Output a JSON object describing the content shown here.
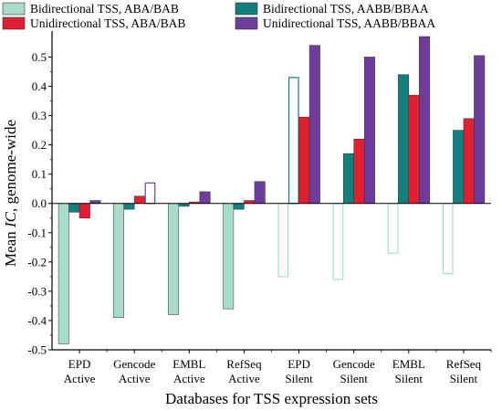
{
  "chart_data": {
    "type": "bar",
    "xlabel": "Databases for TSS expression sets",
    "ylabel_prefix": "Mean ",
    "ylabel_italic": "IC",
    "ylabel_suffix": ", genome-wide",
    "ylim": [
      -0.5,
      0.57
    ],
    "yticks": [
      -0.5,
      -0.4,
      -0.3,
      -0.2,
      -0.1,
      0.0,
      0.1,
      0.2,
      0.3,
      0.4,
      0.5
    ],
    "ytick_labels": [
      "-0.5",
      "-0.4",
      "-0.3",
      "-0.2",
      "-0.1",
      "0.0",
      "0.1",
      "0.2",
      "0.3",
      "0.4",
      "0.5"
    ],
    "categories": [
      [
        "EPD",
        "Active"
      ],
      [
        "Gencode",
        "Active"
      ],
      [
        "EMBL",
        "Active"
      ],
      [
        "RefSeq",
        "Active"
      ],
      [
        "EPD",
        "Silent"
      ],
      [
        "Gencode",
        "Silent"
      ],
      [
        "EMBL",
        "Silent"
      ],
      [
        "RefSeq",
        "Silent"
      ]
    ],
    "legend_placement": "top",
    "series": [
      {
        "name": "Bidirectional TSS, ABA/BAB",
        "color": "#a8dcc9",
        "values": [
          -0.48,
          -0.39,
          -0.38,
          -0.36,
          -0.25,
          -0.26,
          -0.17,
          -0.24
        ],
        "hollow": [
          false,
          false,
          false,
          false,
          true,
          true,
          true,
          true
        ]
      },
      {
        "name": "Bidirectional TSS, AABB/BBAA",
        "color": "#137f7f",
        "values": [
          -0.03,
          -0.02,
          -0.01,
          -0.02,
          0.43,
          0.17,
          0.44,
          0.25
        ],
        "hollow": [
          false,
          false,
          false,
          false,
          true,
          false,
          false,
          false
        ]
      },
      {
        "name": "Unidirectional TSS, ABA/BAB",
        "color": "#e02030",
        "values": [
          -0.05,
          0.025,
          0.005,
          0.01,
          0.295,
          0.22,
          0.37,
          0.29
        ],
        "hollow": [
          false,
          false,
          false,
          false,
          false,
          false,
          false,
          false
        ]
      },
      {
        "name": "Unidirectional TSS, AABB/BBAA",
        "color": "#6d3c9c",
        "values": [
          0.01,
          0.07,
          0.04,
          0.075,
          0.54,
          0.5,
          0.57,
          0.505
        ],
        "hollow": [
          false,
          true,
          false,
          false,
          false,
          false,
          false,
          false
        ]
      }
    ]
  }
}
